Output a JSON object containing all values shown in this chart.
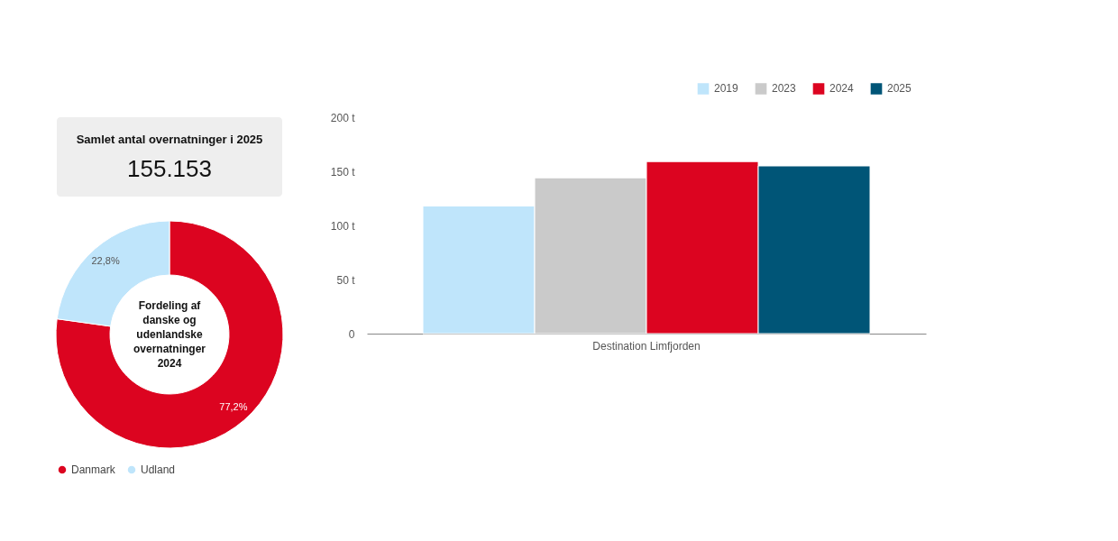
{
  "chart_data": [
    {
      "type": "other",
      "title": "Samlet antal overnatninger i 2025",
      "annotations": [
        "155.153"
      ]
    },
    {
      "type": "donut",
      "title": "Fordeling af danske og udenlandske overnatninger 2024",
      "categories": [
        "Danmark",
        "Udland"
      ],
      "values": [
        77.2,
        22.8
      ],
      "colors": [
        "#dc0420",
        "#bfe5fb"
      ],
      "value_labels": [
        "77,2%",
        "22,8%"
      ],
      "legend": "bottom"
    },
    {
      "type": "bar",
      "categories": [
        "Destination Limfjorden"
      ],
      "ylim": [
        0,
        200
      ],
      "yticks": [
        {
          "value": 0,
          "label": "0"
        },
        {
          "value": 50,
          "label": "50 t"
        },
        {
          "value": 100,
          "label": "100 t"
        },
        {
          "value": 150,
          "label": "150 t"
        },
        {
          "value": 200,
          "label": "200 t"
        }
      ],
      "legend": "top right",
      "grid": false,
      "series": [
        {
          "name": "2019",
          "color": "#bfe5fb",
          "values": [
            118
          ]
        },
        {
          "name": "2023",
          "color": "#cacaca",
          "values": [
            144
          ]
        },
        {
          "name": "2024",
          "color": "#dc0420",
          "values": [
            159
          ]
        },
        {
          "name": "2025",
          "color": "#005577",
          "values": [
            155
          ]
        }
      ]
    }
  ]
}
